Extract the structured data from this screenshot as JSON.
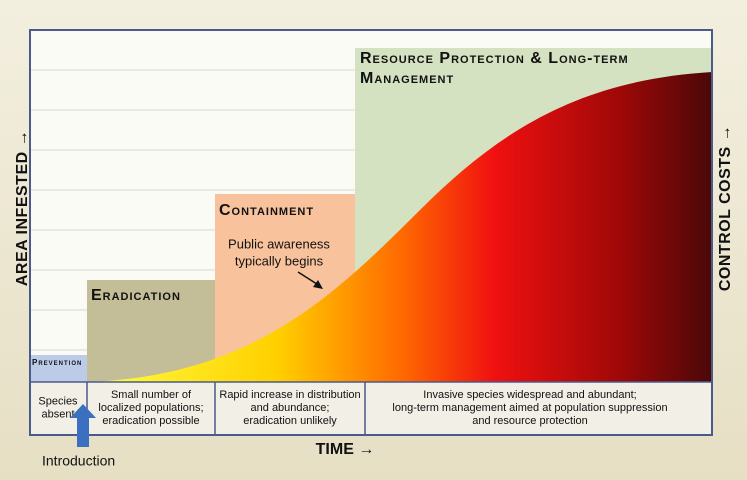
{
  "axes": {
    "y_left": "Area Infested →",
    "y_right": "Control Costs →",
    "x": "TIME →"
  },
  "stages": [
    {
      "label": [
        "Prevention"
      ],
      "description": [
        "Species",
        "absent"
      ]
    },
    {
      "label": [
        "Eradication"
      ],
      "description": [
        "Small number of",
        "localized populations;",
        "eradication possible"
      ]
    },
    {
      "label": [
        "Containment"
      ],
      "description": [
        "Rapid increase in distribution",
        "and abundance;",
        "eradication unlikely"
      ]
    },
    {
      "label": [
        "Resource Protection & Long-term",
        "Management"
      ],
      "description": [
        "Invasive species widespread and abundant;",
        "long-term management aimed at population suppression",
        "and resource protection"
      ]
    }
  ],
  "annotation": [
    "Public awareness",
    "typically begins"
  ],
  "marker": "Introduction"
}
